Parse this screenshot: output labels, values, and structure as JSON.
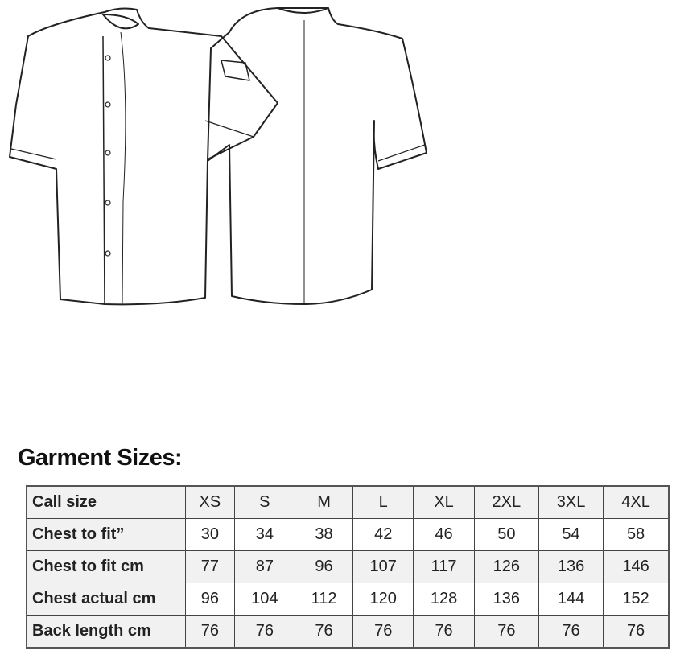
{
  "title": "Garment Sizes:",
  "table": {
    "rows": [
      {
        "label": "Call size",
        "values": [
          "XS",
          "S",
          "M",
          "L",
          "XL",
          "2XL",
          "3XL",
          "4XL"
        ]
      },
      {
        "label": "Chest to fit”",
        "values": [
          "30",
          "34",
          "38",
          "42",
          "46",
          "50",
          "54",
          "58"
        ]
      },
      {
        "label": "Chest to fit cm",
        "values": [
          "77",
          "87",
          "96",
          "107",
          "117",
          "126",
          "136",
          "146"
        ]
      },
      {
        "label": "Chest actual cm",
        "values": [
          "96",
          "104",
          "112",
          "120",
          "128",
          "136",
          "144",
          "152"
        ]
      },
      {
        "label": "Back length cm",
        "values": [
          "76",
          "76",
          "76",
          "76",
          "76",
          "76",
          "76",
          "76"
        ]
      }
    ]
  }
}
